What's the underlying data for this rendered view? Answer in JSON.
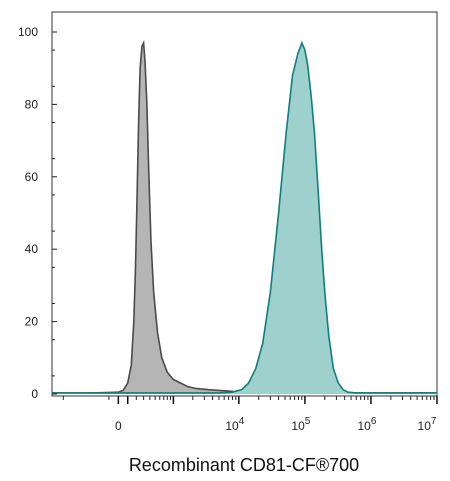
{
  "chart_data": {
    "type": "area",
    "title": "",
    "xlabel": "Recombinant CD81-CF®700",
    "ylabel": "",
    "ylim": [
      0,
      105
    ],
    "y_ticks": [
      0,
      20,
      40,
      60,
      80,
      100
    ],
    "x_scale": "biexponential",
    "x_range": [
      -1500,
      10000000
    ],
    "x_ticks": [
      {
        "value": 0,
        "base": "0",
        "exp": ""
      },
      {
        "value": 10000,
        "base": "10",
        "exp": "4"
      },
      {
        "value": 100000,
        "base": "10",
        "exp": "5"
      },
      {
        "value": 1000000,
        "base": "10",
        "exp": "6"
      },
      {
        "value": 10000000,
        "base": "10",
        "exp": "7"
      }
    ],
    "grid": false,
    "legend": "none",
    "series": [
      {
        "color": "#4a4a4a",
        "fill": "#b5b5b5",
        "points": [
          [
            -1500,
            0.3
          ],
          [
            -300,
            0.3
          ],
          [
            0,
            0.5
          ],
          [
            50,
            1
          ],
          [
            100,
            3
          ],
          [
            140,
            8
          ],
          [
            170,
            20
          ],
          [
            190,
            35
          ],
          [
            210,
            55
          ],
          [
            230,
            75
          ],
          [
            250,
            90
          ],
          [
            275,
            96
          ],
          [
            300,
            97
          ],
          [
            320,
            92
          ],
          [
            350,
            80
          ],
          [
            380,
            62
          ],
          [
            420,
            42
          ],
          [
            470,
            28
          ],
          [
            550,
            17
          ],
          [
            650,
            10
          ],
          [
            800,
            6
          ],
          [
            1000,
            4
          ],
          [
            1300,
            3
          ],
          [
            1700,
            2
          ],
          [
            2300,
            1.5
          ],
          [
            3500,
            1.2
          ],
          [
            5000,
            1
          ],
          [
            7000,
            0.8
          ],
          [
            9000,
            0.6
          ],
          [
            11000,
            0.5
          ],
          [
            15000,
            0.4
          ],
          [
            30000,
            0.3
          ],
          [
            10000000,
            0.3
          ]
        ]
      },
      {
        "color": "#0e7f7c",
        "fill": "#9ed0cd",
        "points": [
          [
            -1500,
            0.3
          ],
          [
            5000,
            0.3
          ],
          [
            8000,
            0.5
          ],
          [
            11000,
            1.2
          ],
          [
            14000,
            3
          ],
          [
            18000,
            7
          ],
          [
            23000,
            14
          ],
          [
            30000,
            28
          ],
          [
            40000,
            50
          ],
          [
            52000,
            72
          ],
          [
            65000,
            88
          ],
          [
            78000,
            94
          ],
          [
            90000,
            97
          ],
          [
            100000,
            95
          ],
          [
            110000,
            91
          ],
          [
            125000,
            82
          ],
          [
            140000,
            72
          ],
          [
            160000,
            55
          ],
          [
            180000,
            40
          ],
          [
            200000,
            28
          ],
          [
            230000,
            16
          ],
          [
            270000,
            7
          ],
          [
            320000,
            3
          ],
          [
            380000,
            1.2
          ],
          [
            450000,
            0.5
          ],
          [
            600000,
            0.3
          ],
          [
            10000000,
            0.3
          ]
        ]
      }
    ]
  }
}
